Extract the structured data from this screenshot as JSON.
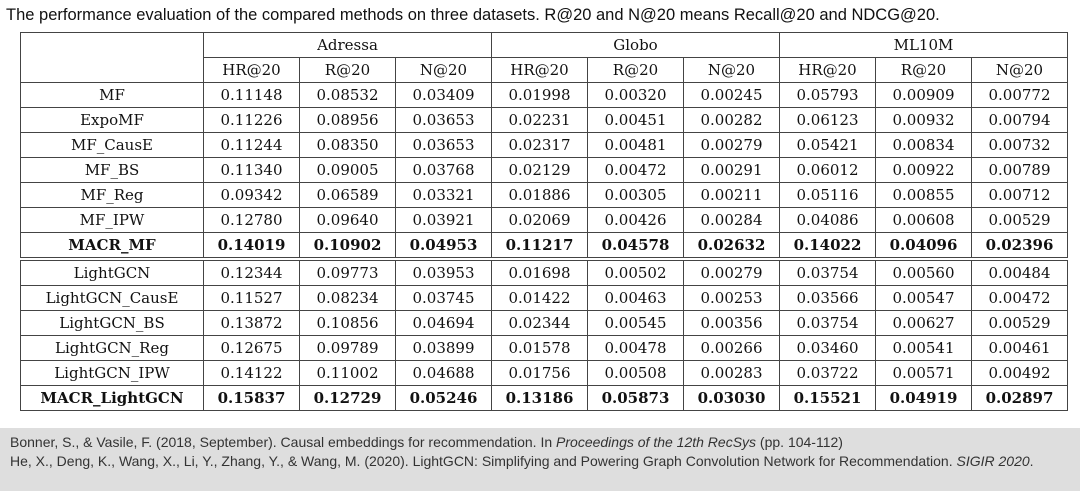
{
  "title": "The performance evaluation of the compared methods on three datasets. R@20 and N@20 means Recall@20 and NDCG@20.",
  "table": {
    "datasets": [
      {
        "name": "Adressa",
        "metrics": [
          "HR@20",
          "R@20",
          "N@20"
        ]
      },
      {
        "name": "Globo",
        "metrics": [
          "HR@20",
          "R@20",
          "N@20"
        ]
      },
      {
        "name": "ML10M",
        "metrics": [
          "HR@20",
          "R@20",
          "N@20"
        ]
      }
    ],
    "groups": [
      {
        "rows": [
          {
            "method": "MF",
            "cells": [
              "0.11148",
              "0.08532",
              "0.03409",
              "0.01998",
              "0.00320",
              "0.00245",
              "0.05793",
              "0.00909",
              "0.00772"
            ]
          },
          {
            "method": "ExpoMF",
            "cells": [
              "0.11226",
              "0.08956",
              "0.03653",
              "0.02231",
              "0.00451",
              "0.00282",
              "0.06123",
              "0.00932",
              "0.00794"
            ]
          },
          {
            "method": "MF_CausE",
            "cells": [
              "0.11244",
              "0.08350",
              "0.03653",
              "0.02317",
              "0.00481",
              "0.00279",
              "0.05421",
              "0.00834",
              "0.00732"
            ]
          },
          {
            "method": "MF_BS",
            "cells": [
              "0.11340",
              "0.09005",
              "0.03768",
              "0.02129",
              "0.00472",
              "0.00291",
              "0.06012",
              "0.00922",
              "0.00789"
            ]
          },
          {
            "method": "MF_Reg",
            "cells": [
              "0.09342",
              "0.06589",
              "0.03321",
              "0.01886",
              "0.00305",
              "0.00211",
              "0.05116",
              "0.00855",
              "0.00712"
            ]
          },
          {
            "method": "MF_IPW",
            "cells": [
              "0.12780",
              "0.09640",
              "0.03921",
              "0.02069",
              "0.00426",
              "0.00284",
              "0.04086",
              "0.00608",
              "0.00529"
            ]
          },
          {
            "method": "MACR_MF",
            "cells": [
              "0.14019",
              "0.10902",
              "0.04953",
              "0.11217",
              "0.04578",
              "0.02632",
              "0.14022",
              "0.04096",
              "0.02396"
            ]
          }
        ]
      },
      {
        "rows": [
          {
            "method": "LightGCN",
            "cells": [
              "0.12344",
              "0.09773",
              "0.03953",
              "0.01698",
              "0.00502",
              "0.00279",
              "0.03754",
              "0.00560",
              "0.00484"
            ]
          },
          {
            "method": "LightGCN_CausE",
            "cells": [
              "0.11527",
              "0.08234",
              "0.03745",
              "0.01422",
              "0.00463",
              "0.00253",
              "0.03566",
              "0.00547",
              "0.00472"
            ]
          },
          {
            "method": "LightGCN_BS",
            "cells": [
              "0.13872",
              "0.10856",
              "0.04694",
              "0.02344",
              "0.00545",
              "0.00356",
              "0.03754",
              "0.00627",
              "0.00529"
            ]
          },
          {
            "method": "LightGCN_Reg",
            "cells": [
              "0.12675",
              "0.09789",
              "0.03899",
              "0.01578",
              "0.00478",
              "0.00266",
              "0.03460",
              "0.00541",
              "0.00461"
            ]
          },
          {
            "method": "LightGCN_IPW",
            "cells": [
              "0.14122",
              "0.11002",
              "0.04688",
              "0.01756",
              "0.00508",
              "0.00283",
              "0.03722",
              "0.00571",
              "0.00492"
            ]
          },
          {
            "method": "MACR_LightGCN",
            "cells": [
              "0.15837",
              "0.12729",
              "0.05246",
              "0.13186",
              "0.05873",
              "0.03030",
              "0.15521",
              "0.04919",
              "0.02897"
            ]
          }
        ]
      }
    ]
  },
  "references": [
    {
      "before": "Bonner, S., & Vasile, F. (2018, September). Causal embeddings for recommendation. In ",
      "venue": "Proceedings of the 12th RecSys",
      "after": " (pp. 104-112)"
    },
    {
      "before": "He, X., Deng, K., Wang, X., Li, Y., Zhang, Y., & Wang, M. (2020). LightGCN: Simplifying and Powering Graph Convolution Network for Recommendation. ",
      "venue": "SIGIR 2020",
      "after": "."
    }
  ]
}
